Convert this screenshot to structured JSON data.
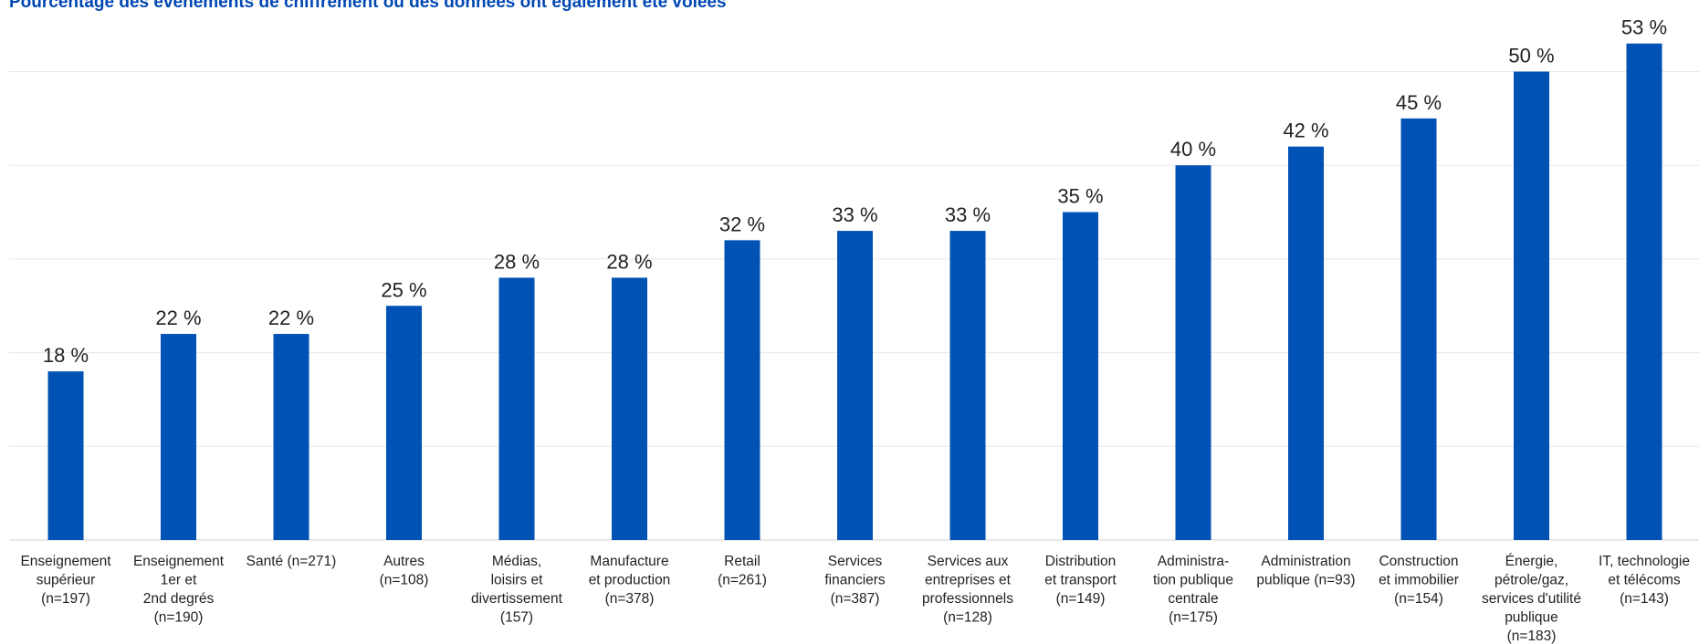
{
  "title": "Pourcentage des événements de chiffrement où des données ont également été volées",
  "colors": {
    "bar": "#0052b4",
    "title": "#0047b3",
    "grid": "#e8e8e8",
    "text": "#222222"
  },
  "chart_data": {
    "type": "bar",
    "title": "Pourcentage des événements de chiffrement où des données ont également été volées",
    "xlabel": "",
    "ylabel": "",
    "ylim": [
      0,
      55
    ],
    "grid": true,
    "value_suffix": " %",
    "categories": [
      [
        "Enseignement",
        "supérieur",
        "(n=197)"
      ],
      [
        "Enseignement",
        "1er et",
        "2nd degrés",
        "(n=190)"
      ],
      [
        "Santé (n=271)"
      ],
      [
        "Autres",
        "(n=108)"
      ],
      [
        "Médias,",
        "loisirs et",
        "divertissement",
        "(157)"
      ],
      [
        "Manufacture",
        "et production",
        "(n=378)"
      ],
      [
        "Retail",
        "(n=261)"
      ],
      [
        "Services",
        "financiers",
        "(n=387)"
      ],
      [
        "Services aux",
        "entreprises et",
        "professionnels",
        "(n=128)"
      ],
      [
        "Distribution",
        "et transport",
        "(n=149)"
      ],
      [
        "Administra-",
        "tion publique",
        "centrale",
        "(n=175)"
      ],
      [
        "Administration",
        "publique (n=93)"
      ],
      [
        "Construction",
        "et immobilier",
        "(n=154)"
      ],
      [
        "Énergie,",
        "pétrole/gaz,",
        "services d'utilité",
        "publique",
        "(n=183)"
      ],
      [
        "IT, technologie",
        "et télécoms",
        "(n=143)"
      ]
    ],
    "values": [
      18,
      22,
      22,
      25,
      28,
      28,
      32,
      33,
      33,
      35,
      40,
      42,
      45,
      50,
      53
    ]
  }
}
